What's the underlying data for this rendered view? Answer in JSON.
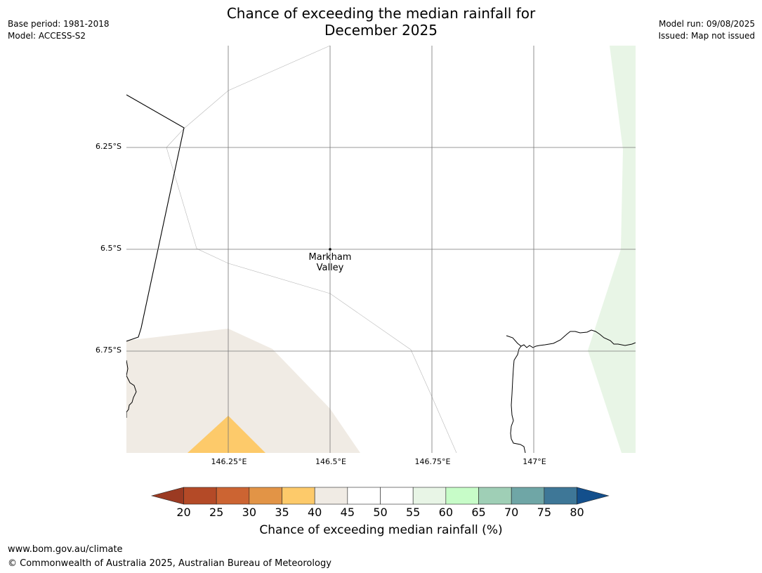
{
  "header": {
    "title_line1": "Chance of exceeding the median rainfall for",
    "title_line2": "December 2025",
    "base_period": "Base period: 1981-2018",
    "model": "Model: ACCESS-S2",
    "model_run": "Model run: 09/08/2025",
    "issued": "Issued: Map not issued"
  },
  "map": {
    "lat_labels": [
      "6.25°S",
      "6.5°S",
      "6.75°S"
    ],
    "lon_labels": [
      "146.25°E",
      "146.5°E",
      "146.75°E",
      "147°E"
    ],
    "place": {
      "line1": "Markham",
      "line2": "Valley",
      "lat": -6.5,
      "lon": 146.5
    },
    "fill_colors": {
      "35-40": "#fdca6a",
      "40-45": "#f0ebe4",
      "55-60": "#e8f5e6"
    }
  },
  "colorbar": {
    "ticks": [
      "20",
      "25",
      "30",
      "35",
      "40",
      "45",
      "50",
      "55",
      "60",
      "65",
      "70",
      "75",
      "80"
    ],
    "colors": [
      "#9b3a22",
      "#b44a27",
      "#cc6432",
      "#e29446",
      "#fdca6a",
      "#f0ebe4",
      "#ffffff",
      "#ffffff",
      "#e8f5e6",
      "#c7fcc8",
      "#9fcfb6",
      "#6fa6a6",
      "#3e7797",
      "#134f8c"
    ],
    "label": "Chance of exceeding median rainfall (%)"
  },
  "footer": {
    "url": "www.bom.gov.au/climate",
    "copyright": "© Commonwealth of Australia 2025, Australian Bureau of Meteorology"
  }
}
